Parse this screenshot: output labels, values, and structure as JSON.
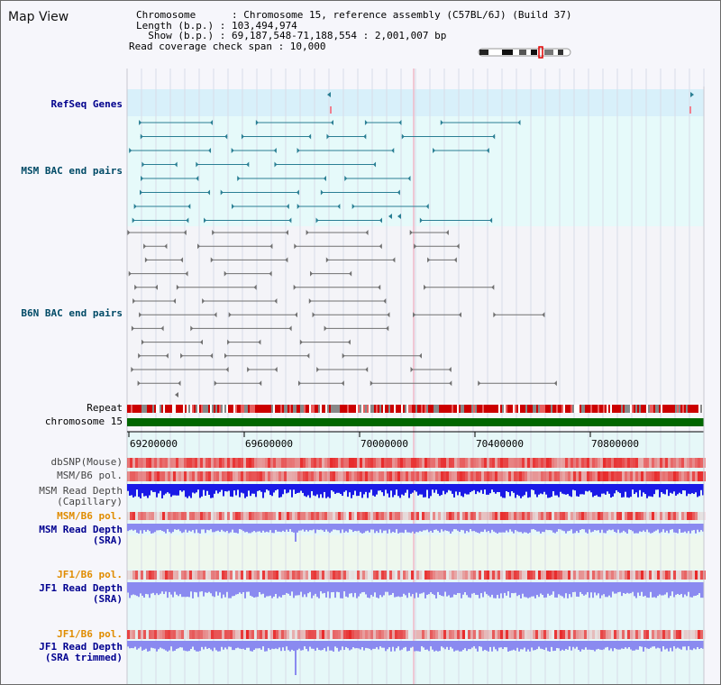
{
  "page_title": "Map View",
  "info": {
    "line1": "Chromosome      : Chromosome 15, reference assembly (C57BL/6J) (Build 37)",
    "line2": "Length (b.p.) : 103,494,974",
    "line3": "  Show (b.p.) : 69,187,548-71,188,554 : 2,001,007 bp",
    "line4": "Read coverage check span : 10,000"
  },
  "track_labels": {
    "refseq": "RefSeq Genes",
    "msm_bac": "MSM BAC end pairs",
    "b6n_bac": "B6N BAC end pairs",
    "repeat": "Repeat",
    "chromosome": "chromosome 15",
    "dbsnp": "dbSNP(Mouse)",
    "msm_b6_pol": "MSM/B6 pol.",
    "msm_depth_cap_1": "MSM Read Depth",
    "msm_depth_cap_2": "(Capillary)",
    "msm_b6_pol_2": "MSM/B6 pol.",
    "msm_depth_sra_1": "MSM Read Depth",
    "msm_depth_sra_2": "(SRA)",
    "jf1_b6_pol": "JF1/B6 pol.",
    "jf1_depth_sra_1": "JF1 Read Depth",
    "jf1_depth_sra_2": "(SRA)",
    "jf1_b6_pol_2": "JF1/B6 pol.",
    "jf1_depth_trim_1": "JF1 Read Depth",
    "jf1_depth_trim_2": "(SRA trimmed)"
  },
  "axis": {
    "range": [
      69187548,
      71188554
    ],
    "ticks": [
      "69200000",
      "69600000",
      "70000000",
      "70400000",
      "70800000"
    ]
  },
  "colors": {
    "refseq_bg": "#d8f0fa",
    "msm_bg": "#e6fafa",
    "msm_feature": "#2a7f94",
    "b6n_feature": "#707070",
    "chromosome": "#006600",
    "repeat": "#cc0000",
    "pol": "#e83030",
    "depth_capillary": "#1a1ae6",
    "depth_sra": "#8a8af0",
    "msm_label": "#004a66",
    "blue_label": "#000090",
    "orange_label": "#e08c00"
  }
}
